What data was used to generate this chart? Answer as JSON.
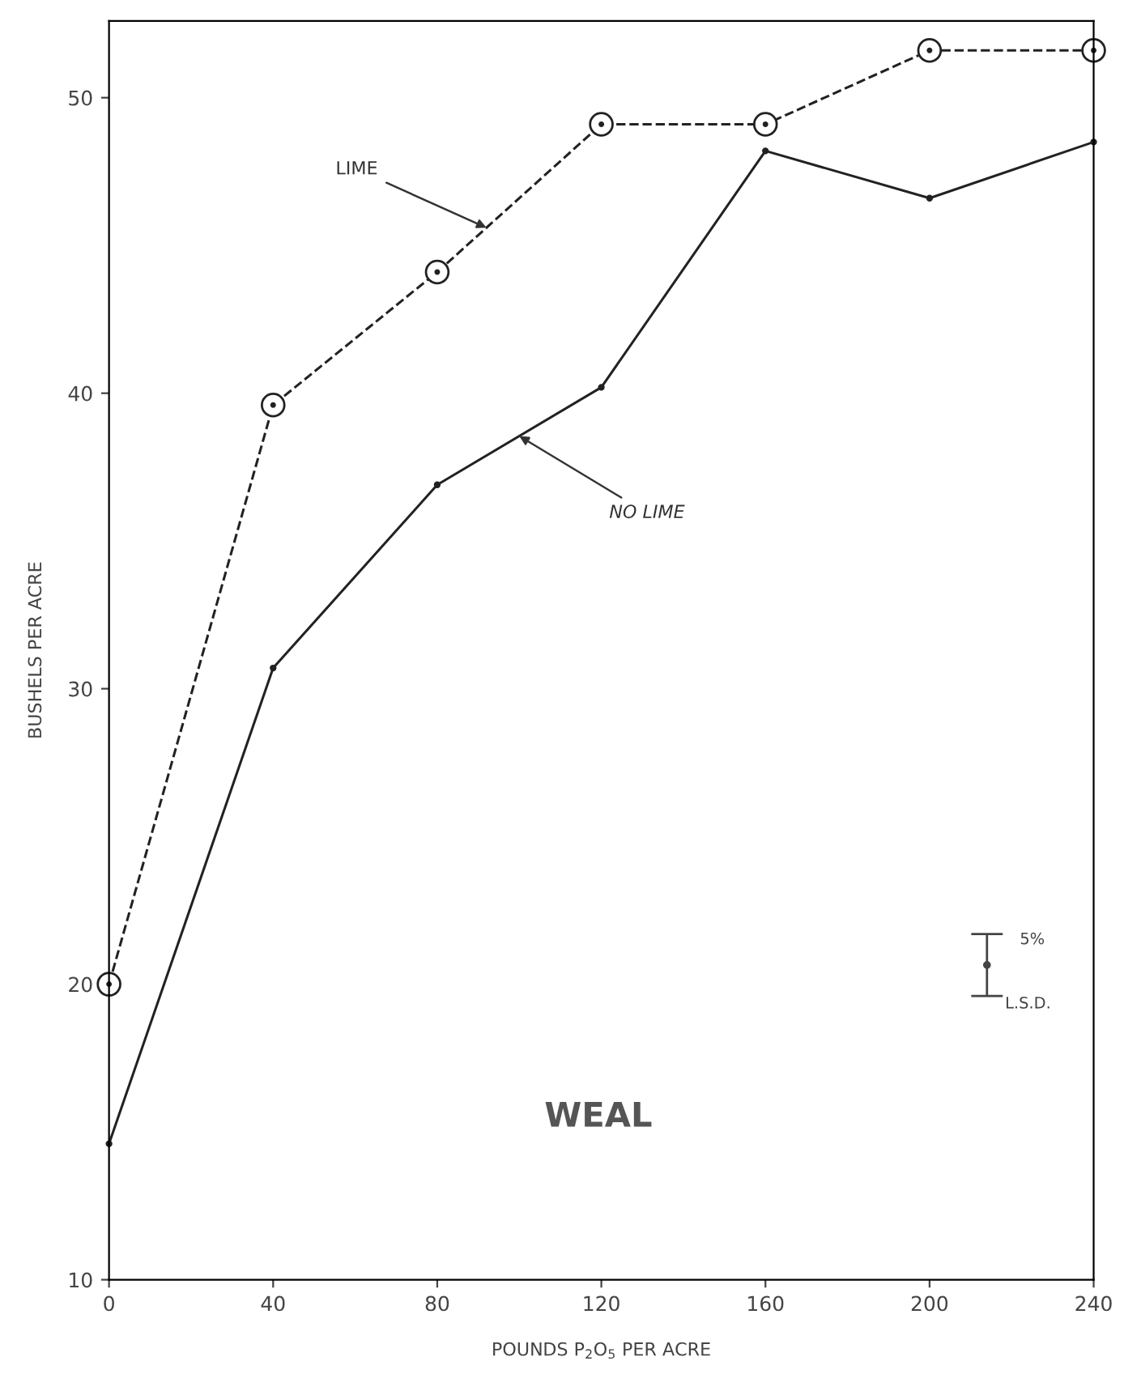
{
  "chart_data": {
    "type": "line",
    "x": [
      0,
      40,
      80,
      120,
      160,
      200,
      240
    ],
    "series": [
      {
        "color": "#222222",
        "values": [
          20.0,
          39.6,
          44.1,
          49.1,
          49.1,
          51.6,
          51.6
        ],
        "line_style": "dashed",
        "marker": "circle"
      },
      {
        "color": "#222222",
        "values": [
          14.6,
          30.7,
          36.9,
          40.2,
          48.2,
          46.6,
          48.5
        ],
        "line_style": "solid",
        "marker": "none"
      },
      {
        "type": "scatter",
        "color": "#444444",
        "x": [
          214
        ],
        "values": [
          20.65
        ],
        "errors": [
          1.05
        ],
        "marker": "circle"
      }
    ],
    "xlabel": "POUNDS P$_{2}$O$_{5}$ PER ACRE",
    "ylabel": "BUSHELS PER ACRE",
    "xlim": [
      0,
      240
    ],
    "ylim": [
      10,
      52.6
    ],
    "xticks": [
      0,
      40,
      80,
      120,
      160,
      200,
      240
    ],
    "yticks": [
      10,
      20,
      30,
      40,
      50
    ],
    "grid": false,
    "legend": false,
    "annotations": [
      {
        "text": "LIME",
        "x": 92,
        "y": 45.6
      },
      {
        "text": "NO LIME",
        "x": 100,
        "y": 38.55
      },
      "WEAL",
      "5%",
      "L.S.D."
    ]
  }
}
